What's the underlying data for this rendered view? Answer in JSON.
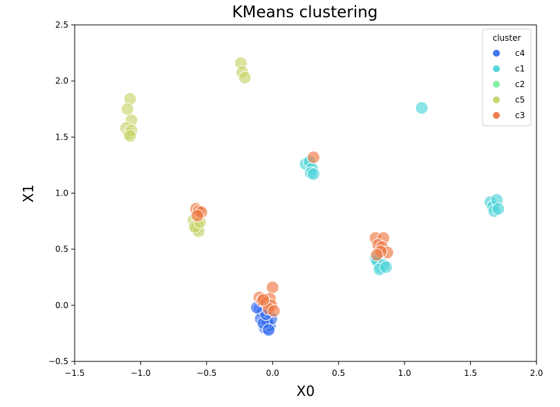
{
  "chart_data": {
    "type": "scatter",
    "title": "KMeans clustering",
    "xlabel": "X0",
    "ylabel": "X1",
    "xlim": [
      -1.5,
      2.0
    ],
    "ylim": [
      -0.5,
      2.5
    ],
    "xticks": [
      "−1.5",
      "−1.0",
      "−0.5",
      "0.0",
      "0.5",
      "1.0",
      "1.5",
      "2.0"
    ],
    "xtick_values": [
      -1.5,
      -1.0,
      -0.5,
      0.0,
      0.5,
      1.0,
      1.5,
      2.0
    ],
    "yticks": [
      "−0.5",
      "0.0",
      "0.5",
      "1.0",
      "1.5",
      "2.0",
      "2.5"
    ],
    "ytick_values": [
      -0.5,
      0.0,
      0.5,
      1.0,
      1.5,
      2.0,
      2.5
    ],
    "grid": false,
    "legend": {
      "title": "cluster",
      "placement": "top-right"
    },
    "series": [
      {
        "name": "c4",
        "color": "#3a6ff0",
        "points": [
          [
            -0.1,
            -0.03
          ],
          [
            -0.08,
            -0.06
          ],
          [
            -0.06,
            -0.1
          ],
          [
            -0.05,
            -0.14
          ],
          [
            -0.04,
            -0.17
          ],
          [
            -0.06,
            -0.2
          ],
          [
            -0.03,
            -0.21
          ],
          [
            -0.02,
            -0.18
          ],
          [
            -0.09,
            -0.12
          ],
          [
            -0.04,
            -0.15
          ],
          [
            -0.01,
            -0.12
          ],
          [
            -0.07,
            -0.16
          ],
          [
            -0.05,
            -0.08
          ],
          [
            -0.03,
            -0.22
          ],
          [
            -0.12,
            -0.02
          ]
        ]
      },
      {
        "name": "c1",
        "color": "#4dd4d8",
        "points": [
          [
            0.25,
            1.26
          ],
          [
            0.28,
            1.28
          ],
          [
            0.3,
            1.22
          ],
          [
            0.29,
            1.18
          ],
          [
            0.31,
            1.17
          ],
          [
            1.13,
            1.76
          ],
          [
            1.65,
            0.92
          ],
          [
            1.67,
            0.88
          ],
          [
            1.7,
            0.94
          ],
          [
            1.68,
            0.84
          ],
          [
            1.71,
            0.86
          ],
          [
            0.78,
            0.42
          ],
          [
            0.8,
            0.38
          ],
          [
            0.82,
            0.34
          ],
          [
            0.79,
            0.4
          ],
          [
            0.84,
            0.36
          ],
          [
            0.81,
            0.32
          ],
          [
            0.86,
            0.34
          ]
        ]
      },
      {
        "name": "c2",
        "color": "#7ef0a0",
        "points": []
      },
      {
        "name": "c5",
        "color": "#c8d46a",
        "points": [
          [
            -1.08,
            1.84
          ],
          [
            -1.1,
            1.75
          ],
          [
            -1.07,
            1.65
          ],
          [
            -1.11,
            1.58
          ],
          [
            -1.09,
            1.53
          ],
          [
            -1.07,
            1.56
          ],
          [
            -1.08,
            1.51
          ],
          [
            -0.24,
            2.16
          ],
          [
            -0.23,
            2.08
          ],
          [
            -0.21,
            2.03
          ],
          [
            -0.6,
            0.76
          ],
          [
            -0.57,
            0.72
          ],
          [
            -0.58,
            0.68
          ],
          [
            -0.56,
            0.66
          ],
          [
            -0.59,
            0.7
          ],
          [
            -0.55,
            0.74
          ]
        ]
      },
      {
        "name": "c3",
        "color": "#ee7a45",
        "points": [
          [
            0.31,
            1.32
          ],
          [
            -0.58,
            0.86
          ],
          [
            -0.56,
            0.84
          ],
          [
            -0.54,
            0.83
          ],
          [
            -0.57,
            0.8
          ],
          [
            0.78,
            0.6
          ],
          [
            0.84,
            0.6
          ],
          [
            0.8,
            0.54
          ],
          [
            0.83,
            0.52
          ],
          [
            0.87,
            0.47
          ],
          [
            0.82,
            0.48
          ],
          [
            0.79,
            0.45
          ],
          [
            0.0,
            0.16
          ],
          [
            -0.1,
            0.07
          ],
          [
            -0.08,
            0.04
          ],
          [
            -0.02,
            0.06
          ],
          [
            -0.05,
            0.02
          ],
          [
            -0.01,
            0.0
          ],
          [
            -0.03,
            -0.03
          ],
          [
            0.01,
            -0.05
          ],
          [
            -0.07,
            0.05
          ]
        ]
      }
    ]
  }
}
